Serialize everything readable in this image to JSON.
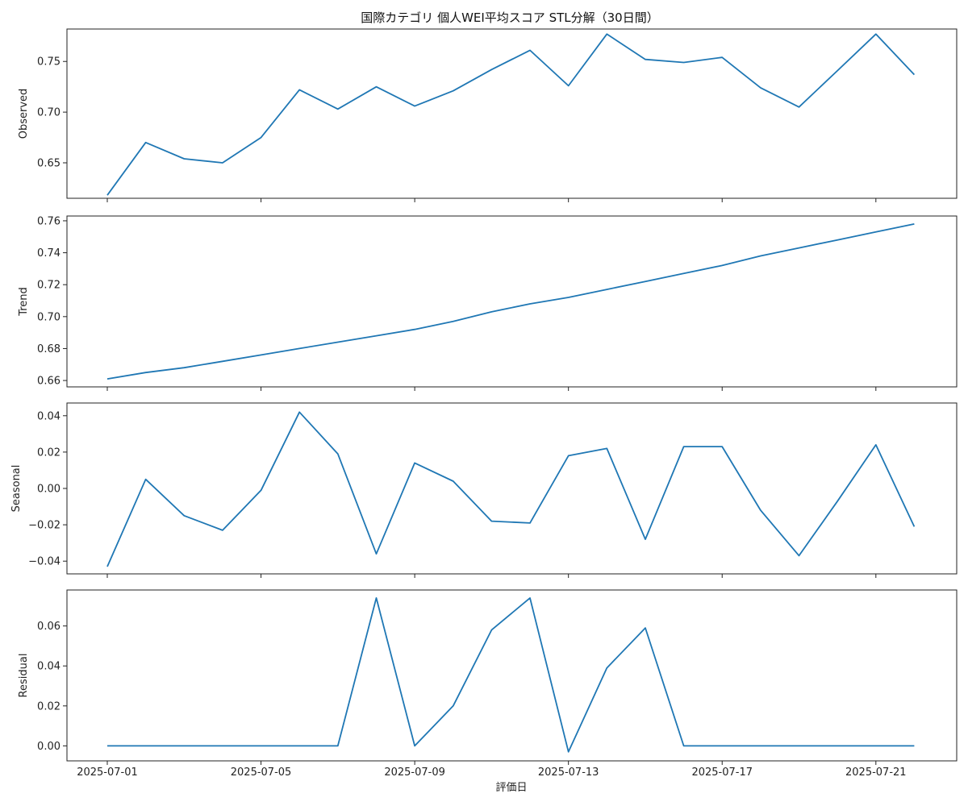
{
  "chart_data": {
    "type": "line",
    "title": "国際カテゴリ 個人WEI平均スコア STL分解（30日間）",
    "xlabel": "評価日",
    "line_color": "#1f77b4",
    "x": [
      "2025-07-01",
      "2025-07-02",
      "2025-07-03",
      "2025-07-04",
      "2025-07-05",
      "2025-07-06",
      "2025-07-07",
      "2025-07-08",
      "2025-07-09",
      "2025-07-10",
      "2025-07-11",
      "2025-07-12",
      "2025-07-13",
      "2025-07-14",
      "2025-07-15",
      "2025-07-16",
      "2025-07-17",
      "2025-07-18",
      "2025-07-19",
      "2025-07-20",
      "2025-07-21",
      "2025-07-22"
    ],
    "xticks": [
      "2025-07-01",
      "2025-07-05",
      "2025-07-09",
      "2025-07-13",
      "2025-07-17",
      "2025-07-21"
    ],
    "panels": [
      {
        "ylabel": "Observed",
        "ylim": [
          0.615,
          0.782
        ],
        "yticks": [
          0.65,
          0.7,
          0.75
        ],
        "yticklabels": [
          "0.65",
          "0.70",
          "0.75"
        ],
        "values": [
          0.618,
          0.67,
          0.654,
          0.65,
          0.675,
          0.722,
          0.703,
          0.725,
          0.706,
          0.721,
          0.742,
          0.761,
          0.726,
          0.777,
          0.752,
          0.749,
          0.754,
          0.724,
          0.705,
          0.741,
          0.777,
          0.737
        ]
      },
      {
        "ylabel": "Trend",
        "ylim": [
          0.656,
          0.763
        ],
        "yticks": [
          0.66,
          0.68,
          0.7,
          0.72,
          0.74,
          0.76
        ],
        "yticklabels": [
          "0.66",
          "0.68",
          "0.70",
          "0.72",
          "0.74",
          "0.76"
        ],
        "values": [
          0.661,
          0.665,
          0.668,
          0.672,
          0.676,
          0.68,
          0.684,
          0.688,
          0.692,
          0.697,
          0.703,
          0.708,
          0.712,
          0.717,
          0.722,
          0.727,
          0.732,
          0.738,
          0.743,
          0.748,
          0.753,
          0.758
        ]
      },
      {
        "ylabel": "Seasonal",
        "ylim": [
          -0.047,
          0.047
        ],
        "yticks": [
          -0.04,
          -0.02,
          0.0,
          0.02,
          0.04
        ],
        "yticklabels": [
          "−0.04",
          "−0.02",
          "0.00",
          "0.02",
          "0.04"
        ],
        "values": [
          -0.043,
          0.005,
          -0.015,
          -0.023,
          -0.001,
          0.042,
          0.019,
          -0.036,
          0.014,
          0.004,
          -0.018,
          -0.019,
          0.018,
          0.022,
          -0.028,
          0.023,
          0.023,
          -0.012,
          -0.037,
          -0.007,
          0.024,
          -0.021
        ]
      },
      {
        "ylabel": "Residual",
        "ylim": [
          -0.0075,
          0.078
        ],
        "yticks": [
          0.0,
          0.02,
          0.04,
          0.06
        ],
        "yticklabels": [
          "0.00",
          "0.02",
          "0.04",
          "0.06"
        ],
        "values": [
          0,
          0,
          0,
          0,
          0,
          0,
          0,
          0.074,
          0,
          0.02,
          0.058,
          0.074,
          -0.003,
          0.039,
          0.059,
          0,
          0,
          0,
          0,
          0,
          0,
          0
        ]
      }
    ]
  }
}
